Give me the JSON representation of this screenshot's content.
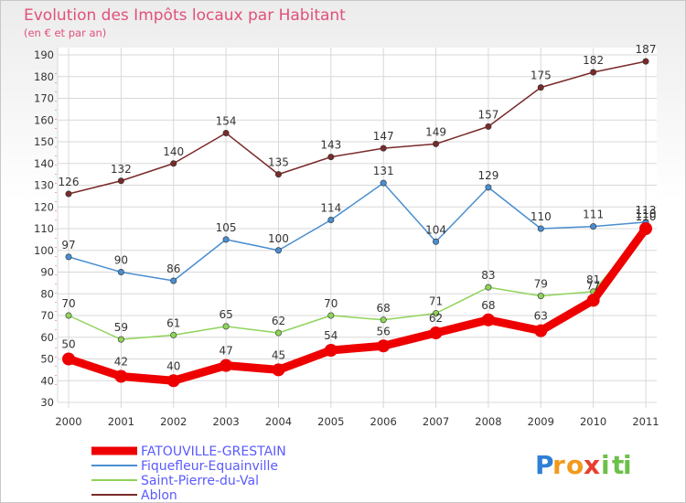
{
  "chart_data": {
    "type": "line",
    "title": "Evolution des Impôts locaux par Habitant",
    "subtitle": "(en € et par an)",
    "categories": [
      "2000",
      "2001",
      "2002",
      "2003",
      "2004",
      "2005",
      "2006",
      "2007",
      "2008",
      "2009",
      "2010",
      "2011"
    ],
    "ylim": [
      30,
      190
    ],
    "yticks": [
      30,
      40,
      50,
      60,
      70,
      80,
      90,
      100,
      110,
      120,
      130,
      140,
      150,
      160,
      170,
      180,
      190
    ],
    "grid": true,
    "legend_position": "bottom-left",
    "series": [
      {
        "name": "Ablon",
        "color": "#7a2a2a",
        "values": [
          126,
          132,
          140,
          154,
          135,
          143,
          147,
          149,
          157,
          175,
          182,
          187
        ]
      },
      {
        "name": "Fiquefleur-Equainville",
        "color": "#4a8ed0",
        "values": [
          97,
          90,
          86,
          105,
          100,
          114,
          131,
          104,
          129,
          110,
          111,
          113
        ]
      },
      {
        "name": "Saint-Pierre-du-Val",
        "color": "#8fd45a",
        "values": [
          70,
          59,
          61,
          65,
          62,
          70,
          68,
          71,
          83,
          79,
          81,
          110
        ]
      },
      {
        "name": "FATOUVILLE-GRESTAIN",
        "color": "#ee0000",
        "values": [
          50,
          42,
          40,
          47,
          45,
          54,
          56,
          62,
          68,
          63,
          77,
          110
        ]
      }
    ]
  },
  "legend": [
    {
      "label": "FATOUVILLE-GRESTAIN",
      "color": "#ee0000"
    },
    {
      "label": "Fiquefleur-Equainville",
      "color": "#4a8ed0"
    },
    {
      "label": "Saint-Pierre-du-Val",
      "color": "#8fd45a"
    },
    {
      "label": "Ablon",
      "color": "#7a2a2a"
    }
  ],
  "brand": {
    "letters": [
      "P",
      "r",
      "o",
      "x",
      "i",
      "t",
      "i"
    ],
    "colors": [
      "#2e7fd6",
      "#f29a1f",
      "#f29a1f",
      "#e83e2c",
      "#6cc04a",
      "#6cc04a",
      "#6cc04a"
    ]
  }
}
